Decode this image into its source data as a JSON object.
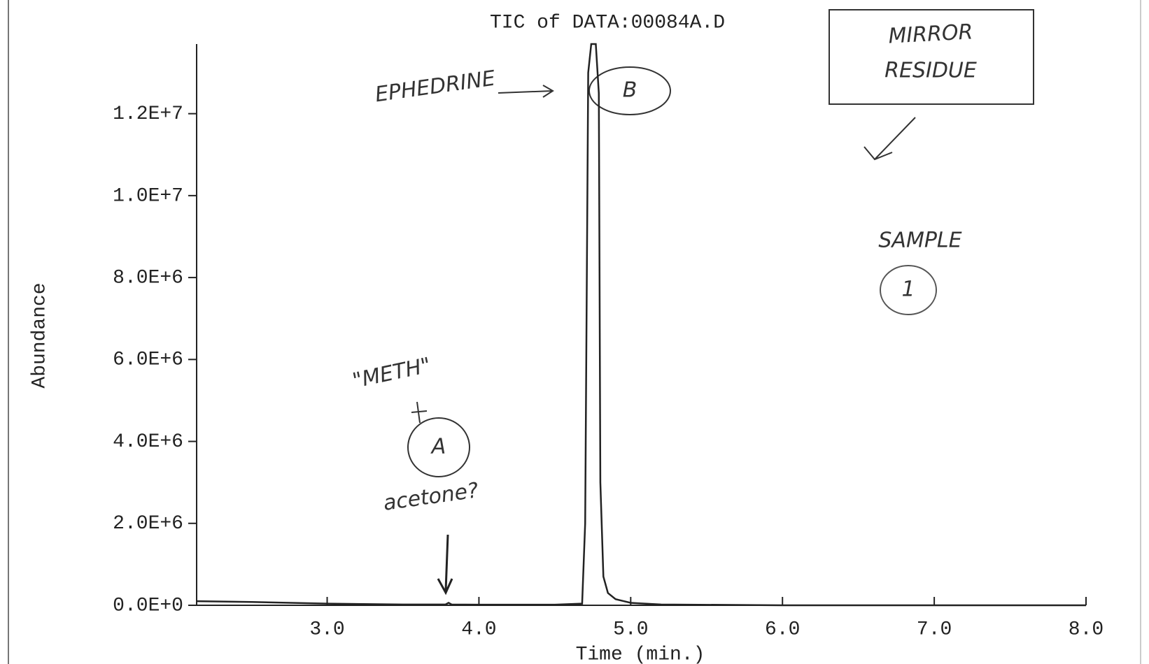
{
  "chart_data": {
    "type": "line",
    "title": "TIC of DATA:00084A.D",
    "xlabel": "Time (min.)",
    "ylabel": "Abundance",
    "x": [
      2.14,
      2.5,
      3.0,
      3.5,
      3.78,
      3.8,
      3.82,
      4.0,
      4.5,
      4.68,
      4.7,
      4.72,
      4.74,
      4.77,
      4.79,
      4.8,
      4.82,
      4.85,
      4.9,
      5.0,
      5.05,
      5.2,
      6.0,
      7.0,
      8.0
    ],
    "values": [
      100000,
      80000,
      40000,
      20000,
      20000,
      60000,
      20000,
      15000,
      15000,
      40000,
      2000000,
      13000000,
      13700000,
      13700000,
      12500000,
      3000000,
      700000,
      300000,
      150000,
      60000,
      50000,
      20000,
      0,
      0,
      0
    ],
    "color": "#222222",
    "xlim": [
      2.14,
      8.0
    ],
    "xticks": [
      {
        "value": 3,
        "label": "3.0"
      },
      {
        "value": 4,
        "label": "4.0"
      },
      {
        "value": 5,
        "label": "5.0"
      },
      {
        "value": 6,
        "label": "6.0"
      },
      {
        "value": 7,
        "label": "7.0"
      },
      {
        "value": 8,
        "label": "8.0"
      }
    ],
    "ylim": [
      0,
      13700000
    ],
    "yticks": [
      {
        "value": 0,
        "label": "0.0E+0"
      },
      {
        "value": 2000000,
        "label": "2.0E+6"
      },
      {
        "value": 4000000,
        "label": "4.0E+6"
      },
      {
        "value": 6000000,
        "label": "6.0E+6"
      },
      {
        "value": 8000000,
        "label": "8.0E+6"
      },
      {
        "value": 10000000,
        "label": "1.0E+7"
      },
      {
        "value": 12000000,
        "label": "1.2E+7"
      }
    ],
    "grid": false,
    "annotations": [
      "EPHEDRINE",
      "B",
      "MIRROR",
      "RESIDUE",
      "SAMPLE",
      "1",
      "\"METH\"",
      "A",
      "acetone?"
    ]
  }
}
